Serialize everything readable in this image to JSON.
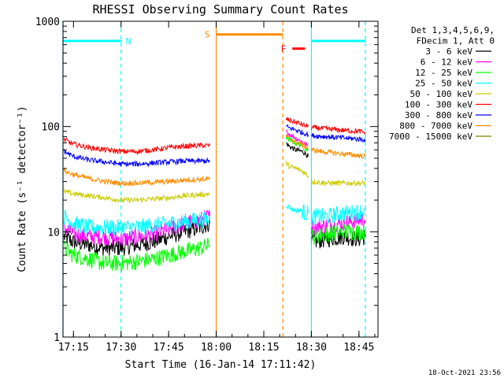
{
  "chart_data": {
    "type": "line",
    "title": "RHESSI Observing Summary Count Rates",
    "xlabel": "Start Time (16-Jan-14 17:11:42)",
    "ylabel": "Count Rate (s⁻¹ detector⁻¹)",
    "yscale": "log",
    "ylim": [
      1,
      1000
    ],
    "xlim": [
      "17:11:42",
      "18:51:00"
    ],
    "x_ticks": [
      "17:15",
      "17:30",
      "17:45",
      "18:00",
      "18:15",
      "18:30",
      "18:45"
    ],
    "y_ticks": [
      "1",
      "10",
      "100",
      "1000"
    ],
    "legend": {
      "placement": "right",
      "header": [
        "Det 1,3,4,5,6,9,",
        "FDecim 1, Att 0"
      ]
    },
    "data_gap": [
      "17:58:00",
      "18:22:00"
    ],
    "series": [
      {
        "name": "3 - 6 keV",
        "color": "#000000",
        "segments": [
          {
            "x": [
              "17:12",
              "17:15",
              "17:20",
              "17:25",
              "17:30",
              "17:35",
              "17:40",
              "17:45",
              "17:50",
              "17:55",
              "17:58"
            ],
            "y": [
              9,
              8,
              7.5,
              7,
              7,
              7.5,
              8,
              9,
              10,
              11,
              12
            ]
          },
          {
            "x": [
              "18:22",
              "18:23",
              "18:25",
              "18:27",
              "18:28",
              "18:29"
            ],
            "y": [
              70,
              65,
              60,
              58,
              56,
              52
            ]
          },
          {
            "x": [
              "18:30",
              "18:35",
              "18:40",
              "18:45",
              "18:47"
            ],
            "y": [
              8,
              8.5,
              9,
              8.5,
              9
            ]
          }
        ]
      },
      {
        "name": "6 - 12 keV",
        "color": "#ff00ff",
        "segments": [
          {
            "x": [
              "17:12",
              "17:15",
              "17:20",
              "17:25",
              "17:30",
              "17:35",
              "17:40",
              "17:45",
              "17:50",
              "17:55",
              "17:58"
            ],
            "y": [
              11,
              9.5,
              9,
              9,
              8.5,
              9,
              9.5,
              10.5,
              12,
              13,
              14
            ]
          },
          {
            "x": [
              "18:22",
              "18:23",
              "18:25",
              "18:27",
              "18:28",
              "18:29"
            ],
            "y": [
              90,
              85,
              78,
              72,
              68,
              65
            ]
          },
          {
            "x": [
              "18:30",
              "18:35",
              "18:40",
              "18:45",
              "18:47"
            ],
            "y": [
              11,
              11.5,
              12,
              13,
              13
            ]
          }
        ]
      },
      {
        "name": "12 - 25 keV",
        "color": "#00ff00",
        "segments": [
          {
            "x": [
              "17:12",
              "17:15",
              "17:20",
              "17:25",
              "17:30",
              "17:35",
              "17:40",
              "17:45",
              "17:50",
              "17:55",
              "17:58"
            ],
            "y": [
              7,
              6,
              5.5,
              5,
              5,
              5.2,
              5.5,
              6,
              6.5,
              7,
              7.5
            ]
          },
          {
            "x": [
              "18:22",
              "18:23",
              "18:25",
              "18:27",
              "18:28",
              "18:29"
            ],
            "y": [
              80,
              75,
              70,
              66,
              62,
              60
            ]
          },
          {
            "x": [
              "18:30",
              "18:35",
              "18:40",
              "18:45",
              "18:47"
            ],
            "y": [
              9,
              9.5,
              10,
              10,
              10
            ]
          }
        ]
      },
      {
        "name": "25 - 50 keV",
        "color": "#00ffff",
        "segments": [
          {
            "x": [
              "17:12",
              "17:15",
              "17:20",
              "17:25",
              "17:30",
              "17:35",
              "17:40",
              "17:45",
              "17:50",
              "17:55",
              "17:58"
            ],
            "y": [
              14,
              12,
              11,
              11,
              11,
              11,
              11.5,
              12,
              12.5,
              13,
              13
            ]
          },
          {
            "x": [
              "18:22",
              "18:23",
              "18:25",
              "18:27",
              "18:28",
              "18:29"
            ],
            "y": [
              18,
              17,
              16,
              16,
              15,
              15
            ]
          },
          {
            "x": [
              "18:30",
              "18:35",
              "18:40",
              "18:45",
              "18:47"
            ],
            "y": [
              14,
              14,
              15,
              15.5,
              16
            ]
          }
        ]
      },
      {
        "name": "50 - 100 keV",
        "color": "#cccc00",
        "segments": [
          {
            "x": [
              "17:12",
              "17:15",
              "17:20",
              "17:25",
              "17:30",
              "17:35",
              "17:40",
              "17:45",
              "17:50",
              "17:55",
              "17:58"
            ],
            "y": [
              24,
              23,
              22,
              21,
              20,
              20,
              20.5,
              21,
              22,
              22.5,
              23
            ]
          },
          {
            "x": [
              "18:22",
              "18:23",
              "18:25",
              "18:27",
              "18:28",
              "18:29"
            ],
            "y": [
              45,
              42,
              40,
              38,
              36,
              34
            ]
          },
          {
            "x": [
              "18:30",
              "18:35",
              "18:40",
              "18:45",
              "18:47"
            ],
            "y": [
              30,
              29,
              29,
              29,
              29
            ]
          }
        ]
      },
      {
        "name": "100 - 300 keV",
        "color": "#ff0000",
        "segments": [
          {
            "x": [
              "17:12",
              "17:15",
              "17:20",
              "17:25",
              "17:30",
              "17:35",
              "17:40",
              "17:45",
              "17:50",
              "17:55",
              "17:58"
            ],
            "y": [
              75,
              68,
              63,
              60,
              58,
              58,
              60,
              63,
              65,
              66,
              66
            ]
          },
          {
            "x": [
              "18:22",
              "18:23",
              "18:25",
              "18:27",
              "18:28",
              "18:29"
            ],
            "y": [
              118,
              115,
              110,
              105,
              102,
              100
            ]
          },
          {
            "x": [
              "18:30",
              "18:35",
              "18:40",
              "18:45",
              "18:47"
            ],
            "y": [
              98,
              95,
              92,
              90,
              88
            ]
          }
        ]
      },
      {
        "name": "300 - 800 keV",
        "color": "#0000ff",
        "segments": [
          {
            "x": [
              "17:12",
              "17:15",
              "17:20",
              "17:25",
              "17:30",
              "17:35",
              "17:40",
              "17:45",
              "17:50",
              "17:55",
              "17:58"
            ],
            "y": [
              58,
              52,
              48,
              46,
              44,
              44,
              45,
              46,
              47,
              47,
              47
            ]
          },
          {
            "x": [
              "18:22",
              "18:23",
              "18:25",
              "18:27",
              "18:28",
              "18:29"
            ],
            "y": [
              100,
              97,
              93,
              88,
              86,
              84
            ]
          },
          {
            "x": [
              "18:30",
              "18:35",
              "18:40",
              "18:45",
              "18:47"
            ],
            "y": [
              82,
              80,
              78,
              76,
              75
            ]
          }
        ]
      },
      {
        "name": "800 - 7000 keV",
        "color": "#ff8c00",
        "segments": [
          {
            "x": [
              "17:12",
              "17:15",
              "17:20",
              "17:25",
              "17:30",
              "17:35",
              "17:40",
              "17:45",
              "17:50",
              "17:55",
              "17:58"
            ],
            "y": [
              38,
              35,
              32,
              30,
              29,
              29,
              29.5,
              30,
              31,
              31.5,
              32
            ]
          },
          {
            "x": [
              "18:22",
              "18:23",
              "18:25",
              "18:27",
              "18:28",
              "18:29"
            ],
            "y": [
              80,
              77,
              72,
              68,
              65,
              62
            ]
          },
          {
            "x": [
              "18:30",
              "18:35",
              "18:40",
              "18:45",
              "18:47"
            ],
            "y": [
              60,
              57,
              55,
              53,
              52
            ]
          }
        ]
      },
      {
        "name": "7000 - 15000 keV",
        "color": "#808000",
        "segments": []
      }
    ],
    "annotations": [
      {
        "label": "N",
        "color": "#00ffff",
        "x_start": "17:11:42",
        "x_end": "17:30",
        "y": 650
      },
      {
        "label": "S",
        "color": "#ff8c00",
        "x_start": "18:00",
        "x_end": "18:21",
        "y": 750
      },
      {
        "label": "F",
        "color": "#ff0000",
        "x_start": "18:24",
        "x_end": "18:28",
        "y": 550
      },
      {
        "label": "",
        "color": "#00ffff",
        "x_start": "18:30",
        "x_end": "18:47",
        "y": 650
      }
    ],
    "vertical_markers": [
      {
        "x": "17:11:42",
        "color": "#00ffff",
        "style": "solid"
      },
      {
        "x": "17:30",
        "color": "#00ffff",
        "style": "dashed"
      },
      {
        "x": "18:00",
        "color": "#ff8c00",
        "style": "solid"
      },
      {
        "x": "18:21",
        "color": "#ff8c00",
        "style": "dashed"
      },
      {
        "x": "18:30",
        "color": "#00ffff",
        "style": "solid"
      },
      {
        "x": "18:47",
        "color": "#00ffff",
        "style": "dashed"
      }
    ],
    "footer": "18-Oct-2021 23:56"
  }
}
